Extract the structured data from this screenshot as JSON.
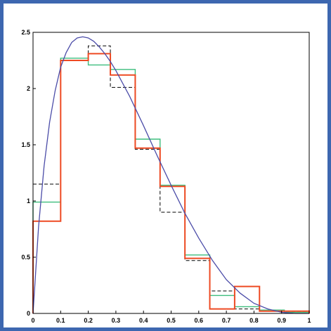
{
  "colors": {
    "frame": "#3d67b0",
    "curve": "#4b4ca8",
    "black_dashed": "#000000",
    "green": "#3dbd7d",
    "red": "#ee4a23"
  },
  "chart_data": {
    "type": "line",
    "title": "",
    "xlabel": "",
    "ylabel": "",
    "xlim": [
      0,
      1
    ],
    "ylim": [
      0,
      2.5
    ],
    "xticks": [
      "0",
      "0.1",
      "0.2",
      "0.3",
      "0.4",
      "0.5",
      "0.6",
      "0.7",
      "0.8",
      "0.9",
      "1"
    ],
    "yticks": [
      "0",
      "0.5",
      "1",
      "1.5",
      "2",
      "2.5"
    ],
    "grid": false,
    "legend": "none",
    "curve": {
      "x": [
        0,
        0.02,
        0.04,
        0.06,
        0.08,
        0.1,
        0.12,
        0.14,
        0.16,
        0.18,
        0.2,
        0.22,
        0.24,
        0.26,
        0.28,
        0.3,
        0.35,
        0.4,
        0.45,
        0.5,
        0.55,
        0.6,
        0.65,
        0.7,
        0.75,
        0.8,
        0.85,
        0.9,
        0.95,
        1.0
      ],
      "y": [
        0,
        0.77,
        1.31,
        1.7,
        1.98,
        2.19,
        2.32,
        2.41,
        2.45,
        2.46,
        2.45,
        2.42,
        2.37,
        2.31,
        2.24,
        2.16,
        1.93,
        1.67,
        1.4,
        1.14,
        0.89,
        0.67,
        0.47,
        0.3,
        0.18,
        0.09,
        0.04,
        0.01,
        0.0,
        0
      ]
    },
    "histograms": [
      {
        "style": "black-dashed",
        "edges": [
          0,
          0.1,
          0.2,
          0.28,
          0.37,
          0.46,
          0.55,
          0.64,
          0.73,
          0.82,
          0.91,
          1.0
        ],
        "values": [
          1.15,
          2.25,
          2.38,
          2.01,
          1.46,
          0.9,
          0.47,
          0.2,
          0.04,
          0.02,
          0.01
        ]
      },
      {
        "style": "green",
        "edges": [
          0,
          0.1,
          0.2,
          0.28,
          0.37,
          0.46,
          0.55,
          0.64,
          0.73,
          0.82,
          0.91,
          1.0
        ],
        "values": [
          0.99,
          2.27,
          2.21,
          2.17,
          1.55,
          1.14,
          0.52,
          0.16,
          0.06,
          0.03,
          0.01
        ]
      },
      {
        "style": "red",
        "edges": [
          0,
          0.1,
          0.2,
          0.28,
          0.37,
          0.46,
          0.55,
          0.64,
          0.73,
          0.82,
          0.91,
          1.0
        ],
        "values": [
          0.82,
          2.25,
          2.31,
          2.12,
          1.47,
          1.13,
          0.49,
          0.04,
          0.24,
          0.02,
          0.02
        ]
      }
    ]
  }
}
